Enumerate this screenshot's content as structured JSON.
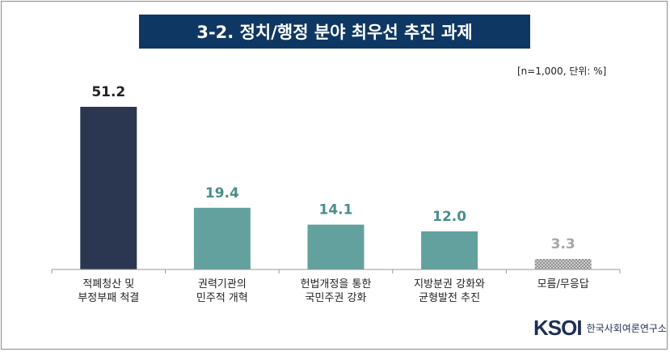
{
  "chart_data": {
    "type": "bar",
    "title": "3-2. 정치/행정 분야 최우선 추진 과제",
    "note": "[n=1,000,  단위: %]",
    "categories": [
      [
        "적폐청산 및",
        "부정부패 척결"
      ],
      [
        "권력기관의",
        "민주적 개혁"
      ],
      [
        "헌법개정을 통한",
        "국민주권 강화"
      ],
      [
        "지방분권 강화와",
        "균형발전 추진"
      ],
      [
        "모름/무응답"
      ]
    ],
    "values": [
      51.2,
      19.4,
      14.1,
      12.0,
      3.3
    ],
    "value_labels": [
      "51.2",
      "19.4",
      "14.1",
      "12.0",
      "3.3"
    ],
    "ylim": [
      0,
      55
    ],
    "grid": false,
    "legend": "none",
    "colors": {
      "bars": [
        "#2b3650",
        "#62a19e",
        "#62a19e",
        "#62a19e",
        "#a6a6a6"
      ],
      "labels": [
        "#222222",
        "#4a8f8b",
        "#4a8f8b",
        "#4a8f8b",
        "#a6a6a6"
      ],
      "pattern_on_last": true
    }
  },
  "brand": {
    "logo_letters": "KSOI",
    "org_name": "한국사회여론연구소"
  }
}
